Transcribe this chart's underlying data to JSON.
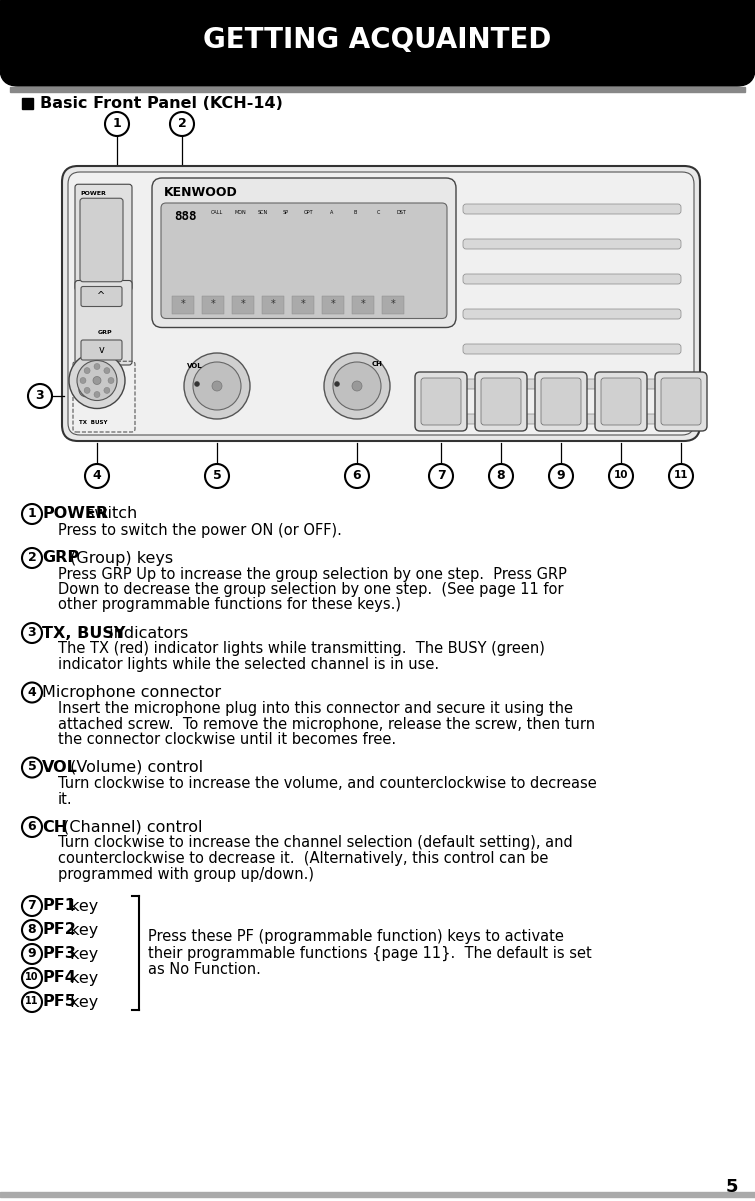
{
  "title": "GETTING ACQUAINTED",
  "subtitle": "Basic Front Panel (KCH‑14)",
  "bg_color": "#ffffff",
  "title_bg": "#000000",
  "title_color": "#ffffff",
  "items": [
    {
      "num": "1",
      "bold_part": "POWER",
      "head_rest": " switch",
      "body_bold": [],
      "body": "Press to switch the power ON (or OFF)."
    },
    {
      "num": "2",
      "bold_part": "GRP",
      "head_rest": " (Group) keys",
      "body_bold": [
        "GRP Up",
        "GRP",
        "Down"
      ],
      "body": "Press GRP Up to increase the group selection by one step.  Press GRP\nDown to decrease the group selection by one step.  (See page 11 for\nother programmable functions for these keys.)"
    },
    {
      "num": "3",
      "bold_part": "TX, BUSY",
      "head_rest": " indicators",
      "body_bold": [
        "TX",
        "BUSY"
      ],
      "body": "The TX (red) indicator lights while transmitting.  The BUSY (green)\nindicator lights while the selected channel is in use."
    },
    {
      "num": "4",
      "bold_part": "",
      "head_rest": "Microphone connector",
      "body_bold": [],
      "body": "Insert the microphone plug into this connector and secure it using the\nattached screw.  To remove the microphone, release the screw, then turn\nthe connector clockwise until it becomes free."
    },
    {
      "num": "5",
      "bold_part": "VOL",
      "head_rest": " (Volume) control",
      "body_bold": [],
      "body": "Turn clockwise to increase the volume, and counterclockwise to decrease\nit."
    },
    {
      "num": "6",
      "bold_part": "CH",
      "head_rest": " (Channel) control",
      "body_bold": [],
      "body": "Turn clockwise to increase the channel selection (default setting), and\ncounterclockwise to decrease it.  (Alternatively, this control can be\nprogrammed with group up/down.)"
    }
  ],
  "pf_items": [
    {
      "num": "7",
      "bold": "PF1",
      "rest": " key"
    },
    {
      "num": "8",
      "bold": "PF2",
      "rest": " key"
    },
    {
      "num": "9",
      "bold": "PF3",
      "rest": " key"
    },
    {
      "num": "10",
      "bold": "PF4",
      "rest": " key"
    },
    {
      "num": "11",
      "bold": "PF5",
      "rest": " key"
    }
  ],
  "pf_description": "Press these PF (programmable function) keys to activate\ntheir programmable functions {page 11}.  The default is set\nas No Function.",
  "page_number": "5"
}
